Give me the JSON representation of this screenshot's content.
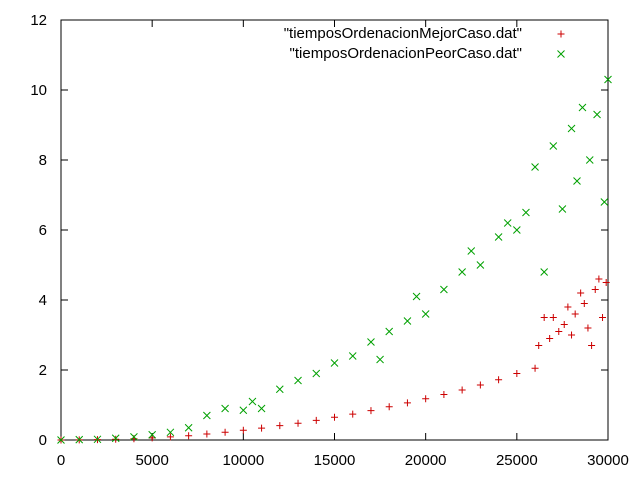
{
  "chart_data": {
    "type": "scatter",
    "title": "",
    "xlabel": "",
    "ylabel": "",
    "xlim": [
      0,
      30000
    ],
    "ylim": [
      0,
      12
    ],
    "xticks": [
      0,
      5000,
      10000,
      15000,
      20000,
      25000,
      30000
    ],
    "yticks": [
      0,
      2,
      4,
      6,
      8,
      10,
      12
    ],
    "xtick_labels": [
      "0",
      "5000",
      "10000",
      "15000",
      "20000",
      "25000",
      "30000"
    ],
    "ytick_labels": [
      "0",
      "2",
      "4",
      "6",
      "8",
      "10",
      "12"
    ],
    "grid": false,
    "legend_position": "top-right",
    "series": [
      {
        "name": "\"tiemposOrdenacionMejorCaso.dat\"",
        "marker": "plus",
        "color": "#cc0000",
        "points": [
          [
            0,
            0.0
          ],
          [
            1000,
            0.005
          ],
          [
            2000,
            0.01
          ],
          [
            3000,
            0.02
          ],
          [
            4000,
            0.035
          ],
          [
            5000,
            0.06
          ],
          [
            6000,
            0.09
          ],
          [
            7000,
            0.12
          ],
          [
            8000,
            0.17
          ],
          [
            9000,
            0.22
          ],
          [
            10000,
            0.28
          ],
          [
            11000,
            0.34
          ],
          [
            12000,
            0.41
          ],
          [
            13000,
            0.48
          ],
          [
            14000,
            0.56
          ],
          [
            15000,
            0.65
          ],
          [
            16000,
            0.74
          ],
          [
            17000,
            0.84
          ],
          [
            18000,
            0.95
          ],
          [
            19000,
            1.06
          ],
          [
            20000,
            1.18
          ],
          [
            21000,
            1.3
          ],
          [
            22000,
            1.43
          ],
          [
            23000,
            1.57
          ],
          [
            24000,
            1.72
          ],
          [
            25000,
            1.9
          ],
          [
            26000,
            2.05
          ],
          [
            26200,
            2.7
          ],
          [
            26500,
            3.5
          ],
          [
            26800,
            2.9
          ],
          [
            27000,
            3.5
          ],
          [
            27300,
            3.1
          ],
          [
            27600,
            3.3
          ],
          [
            27800,
            3.8
          ],
          [
            28000,
            3.0
          ],
          [
            28200,
            3.6
          ],
          [
            28500,
            4.2
          ],
          [
            28700,
            3.9
          ],
          [
            28900,
            3.2
          ],
          [
            29100,
            2.7
          ],
          [
            29300,
            4.3
          ],
          [
            29500,
            4.6
          ],
          [
            29700,
            3.5
          ],
          [
            29900,
            4.5
          ]
        ]
      },
      {
        "name": "\"tiemposOrdenacionPeorCaso.dat\"",
        "marker": "cross",
        "color": "#00a000",
        "points": [
          [
            0,
            0.0
          ],
          [
            1000,
            0.01
          ],
          [
            2000,
            0.02
          ],
          [
            3000,
            0.05
          ],
          [
            4000,
            0.09
          ],
          [
            5000,
            0.15
          ],
          [
            6000,
            0.22
          ],
          [
            7000,
            0.35
          ],
          [
            8000,
            0.7
          ],
          [
            9000,
            0.9
          ],
          [
            10000,
            0.85
          ],
          [
            10500,
            1.1
          ],
          [
            11000,
            0.9
          ],
          [
            12000,
            1.45
          ],
          [
            13000,
            1.7
          ],
          [
            14000,
            1.9
          ],
          [
            15000,
            2.2
          ],
          [
            16000,
            2.4
          ],
          [
            17000,
            2.8
          ],
          [
            17500,
            2.3
          ],
          [
            18000,
            3.1
          ],
          [
            19000,
            3.4
          ],
          [
            19500,
            4.1
          ],
          [
            20000,
            3.6
          ],
          [
            21000,
            4.3
          ],
          [
            22000,
            4.8
          ],
          [
            22500,
            5.4
          ],
          [
            23000,
            5.0
          ],
          [
            24000,
            5.8
          ],
          [
            24500,
            6.2
          ],
          [
            25000,
            6.0
          ],
          [
            25500,
            6.5
          ],
          [
            26000,
            7.8
          ],
          [
            26500,
            4.8
          ],
          [
            27000,
            8.4
          ],
          [
            27500,
            6.6
          ],
          [
            28000,
            8.9
          ],
          [
            28300,
            7.4
          ],
          [
            28600,
            9.5
          ],
          [
            29000,
            8.0
          ],
          [
            29400,
            9.3
          ],
          [
            29800,
            6.8
          ],
          [
            30000,
            10.3
          ]
        ]
      }
    ]
  }
}
